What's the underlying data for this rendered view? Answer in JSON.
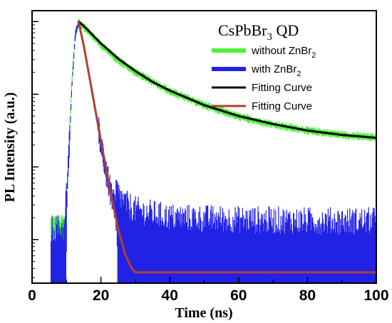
{
  "chart_data": {
    "type": "line",
    "title": "CsPbBr",
    "title_sub": "3",
    "title_suffix": " QD",
    "xlabel": "Time (ns)",
    "ylabel": "PL Intensity (a.u.)",
    "xlim": [
      0,
      100
    ],
    "ylim_log10": [
      -3.6,
      0.15
    ],
    "y_scale": "log",
    "grid": false,
    "legend_position": "top-right",
    "x_ticks": [
      0,
      20,
      40,
      60,
      80,
      100
    ],
    "x_tick_labels": [
      "0",
      "20",
      "40",
      "60",
      "80",
      "100"
    ],
    "colors": {
      "without_ZnBr2": "#4cf03a",
      "with_ZnBr2": "#2222e6",
      "fit_without": "#000000",
      "fit_with": "#b0402c"
    },
    "legend": [
      {
        "key": "without_ZnBr2",
        "label": "without  ZnBr",
        "sub": "2"
      },
      {
        "key": "with_ZnBr2",
        "label": "with  ZnBr",
        "sub": "2"
      },
      {
        "key": "fit_without",
        "label": "Fitting Curve",
        "sub": ""
      },
      {
        "key": "fit_with",
        "label": "Fitting Curve",
        "sub": ""
      }
    ],
    "series": [
      {
        "key": "without_ZnBr2",
        "x": [
          5.5,
          9.5,
          10.5,
          11.5,
          12.5,
          13.5,
          15,
          20,
          25,
          30,
          40,
          50,
          60,
          70,
          80,
          90,
          100
        ],
        "y_log10": [
          -2.85,
          -2.85,
          -1.9,
          -0.85,
          -0.2,
          0.0,
          -0.07,
          -0.32,
          -0.53,
          -0.7,
          -0.96,
          -1.15,
          -1.31,
          -1.42,
          -1.5,
          -1.56,
          -1.6
        ]
      },
      {
        "key": "with_ZnBr2",
        "x": [
          5.5,
          9.5,
          10.5,
          11.5,
          12.5,
          13.5,
          15,
          17,
          19,
          21,
          23,
          25,
          27,
          30,
          35,
          40,
          60,
          80,
          100
        ],
        "y_log10": [
          -3.2,
          -3.2,
          -2.0,
          -0.95,
          -0.2,
          0.0,
          -0.32,
          -0.85,
          -1.4,
          -1.95,
          -2.4,
          -2.72,
          -2.85,
          -2.95,
          -3.0,
          -3.05,
          -3.08,
          -3.1,
          -3.1
        ]
      },
      {
        "key": "fit_without",
        "x": [
          13.5,
          15,
          20,
          25,
          30,
          35,
          40,
          50,
          60,
          70,
          80,
          90,
          100
        ],
        "y_log10": [
          0.0,
          -0.06,
          -0.3,
          -0.51,
          -0.68,
          -0.83,
          -0.95,
          -1.15,
          -1.3,
          -1.41,
          -1.5,
          -1.56,
          -1.6
        ]
      },
      {
        "key": "fit_with",
        "x": [
          13.5,
          15,
          17,
          19,
          21,
          23,
          25,
          27,
          29,
          30,
          40,
          60,
          80,
          100
        ],
        "y_log10": [
          0.0,
          -0.33,
          -0.85,
          -1.38,
          -1.9,
          -2.4,
          -2.85,
          -3.2,
          -3.4,
          -3.45,
          -3.45,
          -3.45,
          -3.45,
          -3.45
        ]
      }
    ]
  }
}
